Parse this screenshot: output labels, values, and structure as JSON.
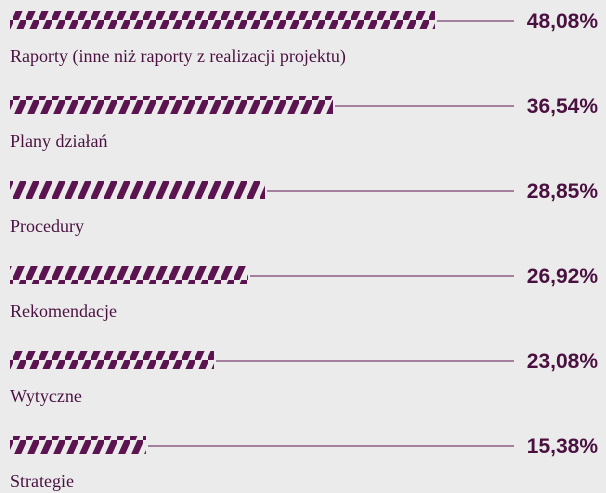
{
  "chart_data": {
    "type": "bar",
    "categories": [
      "Raporty (inne niż raporty z realizacji projektu)",
      "Plany działań",
      "Procedury",
      "Rekomendacje",
      "Wytyczne",
      "Strategie"
    ],
    "values": [
      48.08,
      36.54,
      28.85,
      26.92,
      23.08,
      15.38
    ],
    "value_labels": [
      "48,08%",
      "36,54%",
      "28,85%",
      "26,92%",
      "23,08%",
      "15,38%"
    ],
    "color": "#5b1450"
  }
}
